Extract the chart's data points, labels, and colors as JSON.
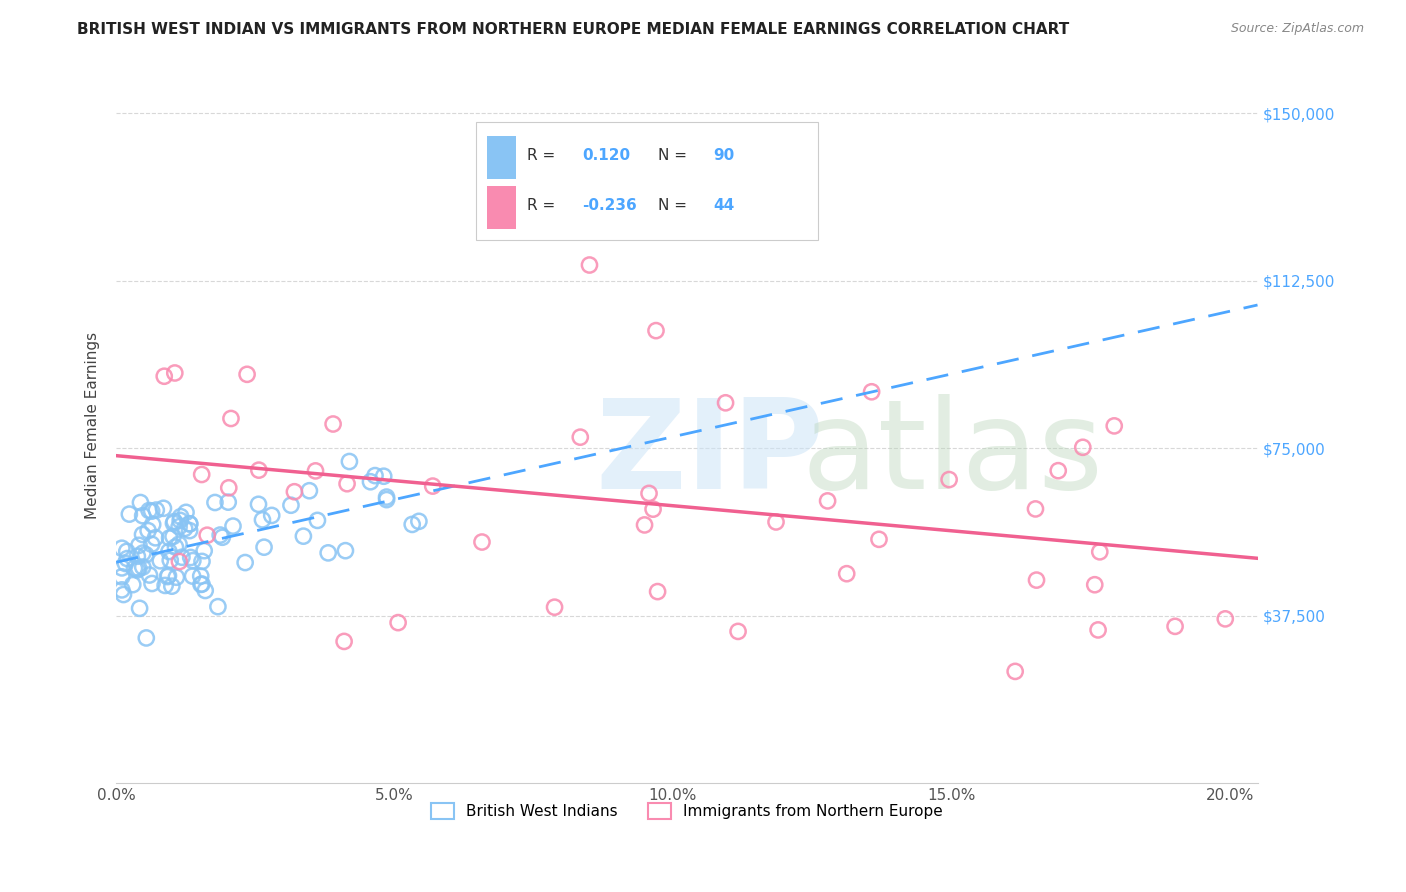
{
  "title": "BRITISH WEST INDIAN VS IMMIGRANTS FROM NORTHERN EUROPE MEDIAN FEMALE EARNINGS CORRELATION CHART",
  "source": "Source: ZipAtlas.com",
  "ylabel": "Median Female Earnings",
  "xmin": 0.0,
  "xmax": 0.205,
  "ymin": 0,
  "ymax": 160000,
  "legend": {
    "series1_label": "British West Indians",
    "series2_label": "Immigrants from Northern Europe",
    "r1": "0.120",
    "n1": "90",
    "r2": "-0.236",
    "n2": "44"
  },
  "color_blue": "#89c4f4",
  "color_pink": "#f98bb0",
  "color_line_blue": "#4da6ff",
  "color_line_pink": "#f06090",
  "color_axis_blue": "#4da6ff",
  "color_legend_values": "#4da6ff",
  "background": "#ffffff",
  "grid_color": "#d8d8d8",
  "yticks": [
    37500,
    75000,
    112500,
    150000
  ],
  "ytick_labels": [
    "$37,500",
    "$75,000",
    "$112,500",
    "$150,000"
  ],
  "xticks": [
    0.0,
    0.05,
    0.1,
    0.15,
    0.2
  ],
  "xtick_labels": [
    "0.0%",
    "5.0%",
    "10.0%",
    "15.0%",
    "20.0%"
  ]
}
